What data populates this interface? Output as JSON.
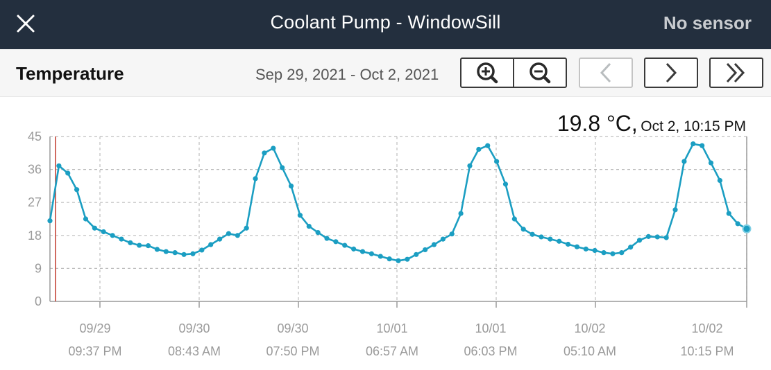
{
  "topbar": {
    "title": "Coolant Pump - WindowSill",
    "status": "No sensor"
  },
  "subbar": {
    "title": "Temperature",
    "date_range": "Sep 29, 2021 - Oct 2, 2021"
  },
  "readout": {
    "value": "19.8 °C,",
    "time": "Oct 2, 10:15 PM"
  },
  "colors": {
    "line": "#1b9ec2",
    "cursor": "#c0392b",
    "grid": "#bdbdbd",
    "axis": "#9a9a9a"
  },
  "chart_data": {
    "type": "line",
    "x_unit": "hours since first sample",
    "ylim": [
      0,
      45
    ],
    "y_ticks": [
      0,
      9,
      18,
      27,
      36,
      45
    ],
    "x_ticks": [
      {
        "date": "09/29",
        "time": "09:37 PM"
      },
      {
        "date": "09/30",
        "time": "08:43 AM"
      },
      {
        "date": "09/30",
        "time": "07:50 PM"
      },
      {
        "date": "10/01",
        "time": "06:57 AM"
      },
      {
        "date": "10/01",
        "time": "06:03 PM"
      },
      {
        "date": "10/02",
        "time": "05:10 AM"
      },
      {
        "date": "10/02",
        "time": "10:15 PM"
      }
    ],
    "series": [
      {
        "name": "Temperature",
        "values": [
          22,
          37,
          35,
          30.5,
          22.5,
          20,
          19,
          18,
          17,
          16,
          15.3,
          15.2,
          14.2,
          13.6,
          13.3,
          12.8,
          13,
          14,
          15.5,
          17,
          18.5,
          18,
          20,
          33.5,
          40.5,
          41.8,
          36.5,
          31.5,
          23.5,
          20.5,
          18.8,
          17.2,
          16.3,
          15.3,
          14.3,
          13.6,
          13,
          12.3,
          11.6,
          11.1,
          11.5,
          12.8,
          14.1,
          15.5,
          17,
          18.4,
          24,
          37,
          41.5,
          42.5,
          38.2,
          32,
          22.5,
          19.7,
          18.3,
          17.6,
          17,
          16.4,
          15.6,
          14.9,
          14.3,
          13.9,
          13.3,
          13,
          13.3,
          14.8,
          16.7,
          17.7,
          17.6,
          17.4,
          25,
          38.2,
          43,
          42.5,
          37.8,
          33,
          24,
          21.2,
          19.8
        ]
      }
    ]
  }
}
